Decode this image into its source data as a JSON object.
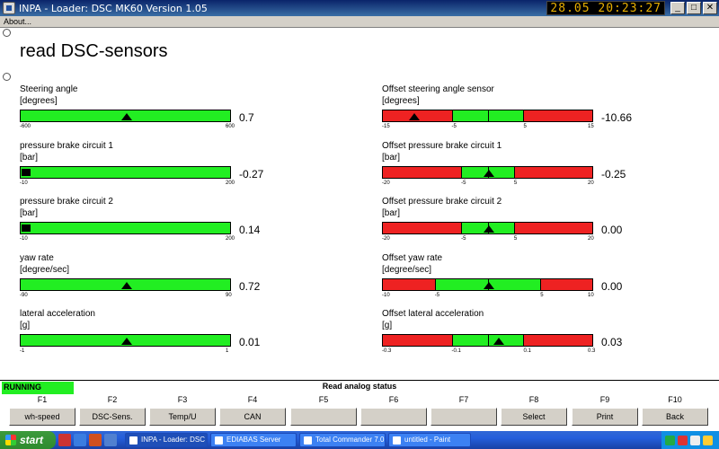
{
  "window": {
    "title": "INPA - Loader:  DSC MK60 Version 1.05",
    "clock": "28.05 20:23:27",
    "min_label": "_",
    "max_label": "□",
    "close_label": "✕"
  },
  "menu": {
    "about": "About..."
  },
  "page": {
    "heading": "read DSC-sensors"
  },
  "sensors_left": [
    {
      "name": "Steering angle",
      "unit": "[degrees]",
      "value": "0.7",
      "ticks": [
        "-600",
        "600"
      ],
      "marker": 0.5
    },
    {
      "name": "pressure brake circuit 1",
      "unit": "[bar]",
      "value": "-0.27",
      "ticks": [
        "-10",
        "200"
      ],
      "marker": null
    },
    {
      "name": "pressure brake circuit 2",
      "unit": "[bar]",
      "value": "0.14",
      "ticks": [
        "-10",
        "200"
      ],
      "marker": null
    },
    {
      "name": "yaw rate",
      "unit": "[degree/sec]",
      "value": "0.72",
      "ticks": [
        "-90",
        "90"
      ],
      "marker": 0.5
    },
    {
      "name": "lateral acceleration",
      "unit": "[g]",
      "value": "0.01",
      "ticks": [
        "-1",
        "1"
      ],
      "marker": 0.5
    }
  ],
  "sensors_right": [
    {
      "name": "Offset steering angle sensor",
      "unit": "[degrees]",
      "value": "-10.66",
      "ticks": [
        "-15",
        "-5",
        "5",
        "15"
      ],
      "marker": 0.15
    },
    {
      "name": "Offset pressure brake circuit 1",
      "unit": "[bar]",
      "value": "-0.25",
      "ticks": [
        "-20",
        "-5",
        "5",
        "20"
      ],
      "marker": 0.5
    },
    {
      "name": "Offset pressure brake circuit 2",
      "unit": "[bar]",
      "value": "0.00",
      "ticks": [
        "-20",
        "-5",
        "5",
        "20"
      ],
      "marker": 0.5
    },
    {
      "name": "Offset yaw rate",
      "unit": "[degree/sec]",
      "value": "0.00",
      "ticks": [
        "-10",
        "-5",
        "5",
        "10"
      ],
      "marker": 0.5
    },
    {
      "name": "Offset lateral acceleration",
      "unit": "[g]",
      "value": "0.03",
      "ticks": [
        "-0.3",
        "-0.1",
        "0.1",
        "0.3"
      ],
      "marker": 0.55
    }
  ],
  "status": {
    "running": "RUNNING",
    "title": "Read analog status"
  },
  "fkeys": [
    {
      "key": "F1",
      "label": "wh-speed"
    },
    {
      "key": "F2",
      "label": "DSC-Sens."
    },
    {
      "key": "F3",
      "label": "Temp/U"
    },
    {
      "key": "F4",
      "label": "CAN"
    },
    {
      "key": "F5",
      "label": ""
    },
    {
      "key": "F6",
      "label": ""
    },
    {
      "key": "F7",
      "label": ""
    },
    {
      "key": "F8",
      "label": "Select"
    },
    {
      "key": "F9",
      "label": "Print"
    },
    {
      "key": "F10",
      "label": "Back"
    }
  ],
  "taskbar": {
    "start": "start",
    "tasks": [
      {
        "label": "INPA - Loader: DSC ...",
        "active": true
      },
      {
        "label": "EDIABAS Server",
        "active": false
      },
      {
        "label": "Total Commander 7.0...",
        "active": false
      },
      {
        "label": "untitled - Paint",
        "active": false
      }
    ]
  },
  "colors": {
    "ok": "#22ee22",
    "warn": "#ee2222"
  }
}
